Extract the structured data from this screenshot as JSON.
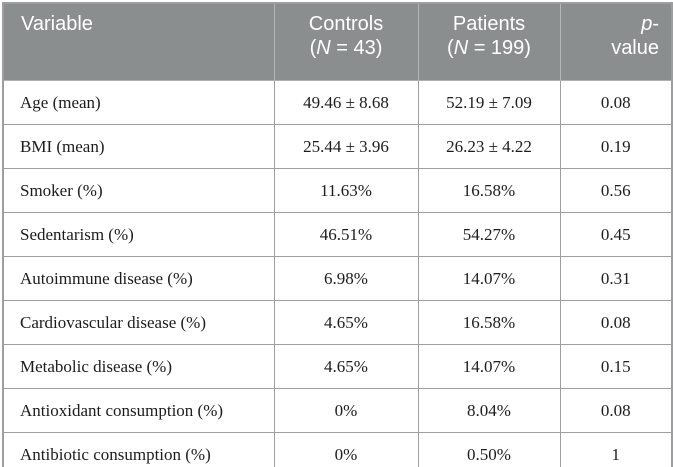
{
  "colors": {
    "header_bg": "#8b8e8f",
    "header_text": "#ffffff",
    "header_divider": "#b4b8b8",
    "grid_line": "#9d9fa0",
    "body_text": "#1c1c1c",
    "row_bg": "#ffffff"
  },
  "table": {
    "header": {
      "variable": "Variable",
      "controls": {
        "title": "Controls",
        "n_open": "(",
        "n_symbol": "N",
        "n_rest": " = 43)"
      },
      "patients": {
        "title": "Patients",
        "n_open": "(",
        "n_symbol": "N",
        "n_rest": " = 199)"
      },
      "p_value": {
        "symbol": "p",
        "suffix": "-",
        "line2": "value"
      }
    },
    "rows": [
      {
        "label": "Age (mean)",
        "controls": "49.46 ± 8.68",
        "patients": "52.19 ± 7.09",
        "p": "0.08"
      },
      {
        "label": "BMI (mean)",
        "controls": "25.44 ± 3.96",
        "patients": "26.23 ± 4.22",
        "p": "0.19"
      },
      {
        "label": "Smoker (%)",
        "controls": "11.63%",
        "patients": "16.58%",
        "p": "0.56"
      },
      {
        "label": "Sedentarism (%)",
        "controls": "46.51%",
        "patients": "54.27%",
        "p": "0.45"
      },
      {
        "label": "Autoimmune disease (%)",
        "controls": "6.98%",
        "patients": "14.07%",
        "p": "0.31"
      },
      {
        "label": "Cardiovascular disease (%)",
        "controls": "4.65%",
        "patients": "16.58%",
        "p": "0.08"
      },
      {
        "label": "Metabolic disease (%)",
        "controls": "4.65%",
        "patients": "14.07%",
        "p": "0.15"
      },
      {
        "label": "Antioxidant consumption (%)",
        "controls": "0%",
        "patients": "8.04%",
        "p": "0.08"
      },
      {
        "label": "Antibiotic consumption (%)",
        "controls": "0%",
        "patients": "0.50%",
        "p": "1"
      }
    ]
  }
}
